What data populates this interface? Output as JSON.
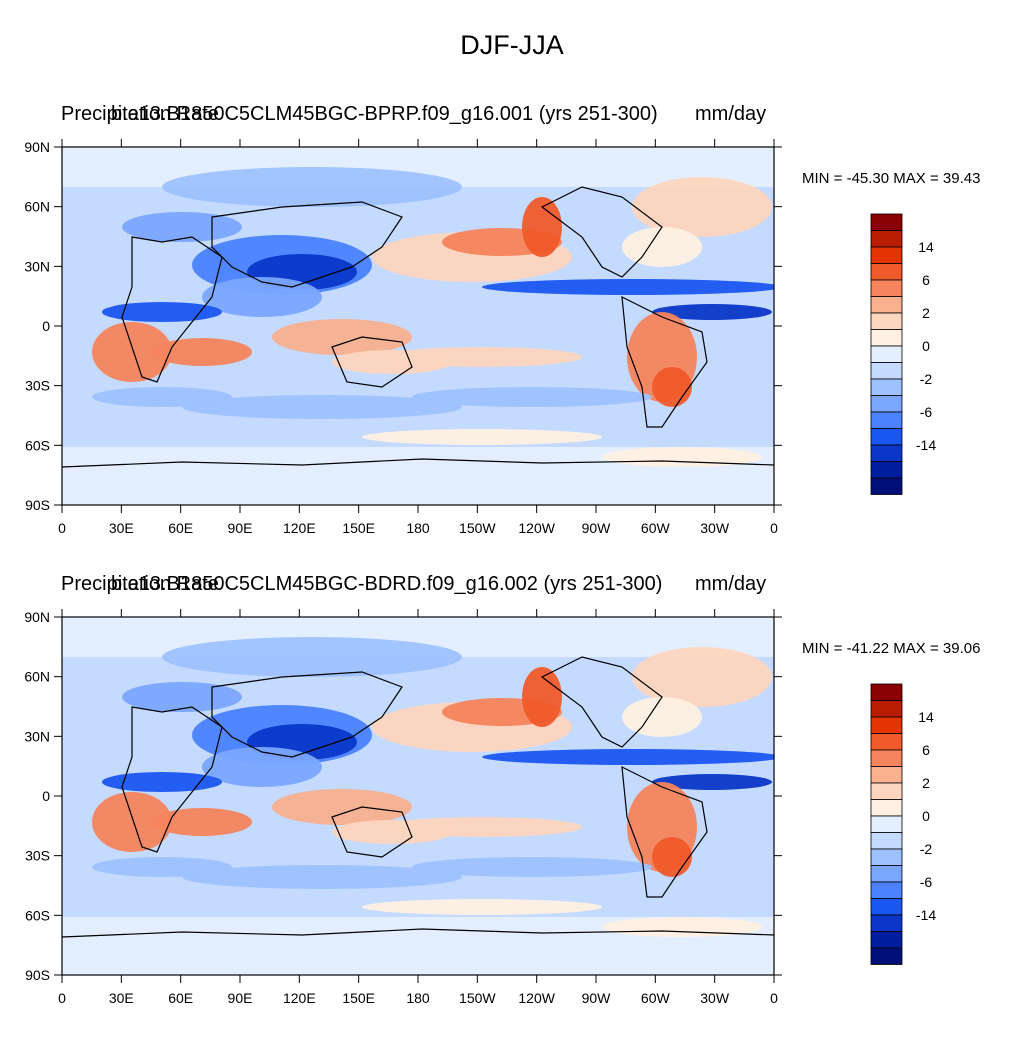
{
  "title": "DJF-JJA",
  "panels": [
    {
      "left_label": "Precipitation Rate",
      "center_label": "b.e13.B1850C5CLM45BGC-BPRP.f09_g16.001 (yrs 251-300)",
      "right_label": "mm/day",
      "stats": "MIN = -45.30 MAX =  39.43"
    },
    {
      "left_label": "Precipitation Rate",
      "center_label": "b.e13.B1850C5CLM45BGC-BDRD.f09_g16.002 (yrs 251-300)",
      "right_label": "mm/day",
      "stats": "MIN = -41.22 MAX =  39.06"
    }
  ],
  "lat_ticks": [
    "90N",
    "60N",
    "30N",
    "0",
    "30S",
    "60S",
    "90S"
  ],
  "lon_ticks": [
    "0",
    "30E",
    "60E",
    "90E",
    "120E",
    "150E",
    "180",
    "150W",
    "120W",
    "90W",
    "60W",
    "30W",
    "0"
  ],
  "colorbar": {
    "labels": [
      "14",
      "6",
      "2",
      "0",
      "-2",
      "-6",
      "-14"
    ],
    "colors": [
      "#8b0000",
      "#b81d00",
      "#e23300",
      "#f05a2a",
      "#f6845c",
      "#f9b08e",
      "#fdd6bf",
      "#fff0e3",
      "#e3efff",
      "#c4daff",
      "#9ec2ff",
      "#7aa6ff",
      "#4a82ff",
      "#1a56f0",
      "#0a37c8",
      "#001fa0",
      "#00107a"
    ]
  }
}
